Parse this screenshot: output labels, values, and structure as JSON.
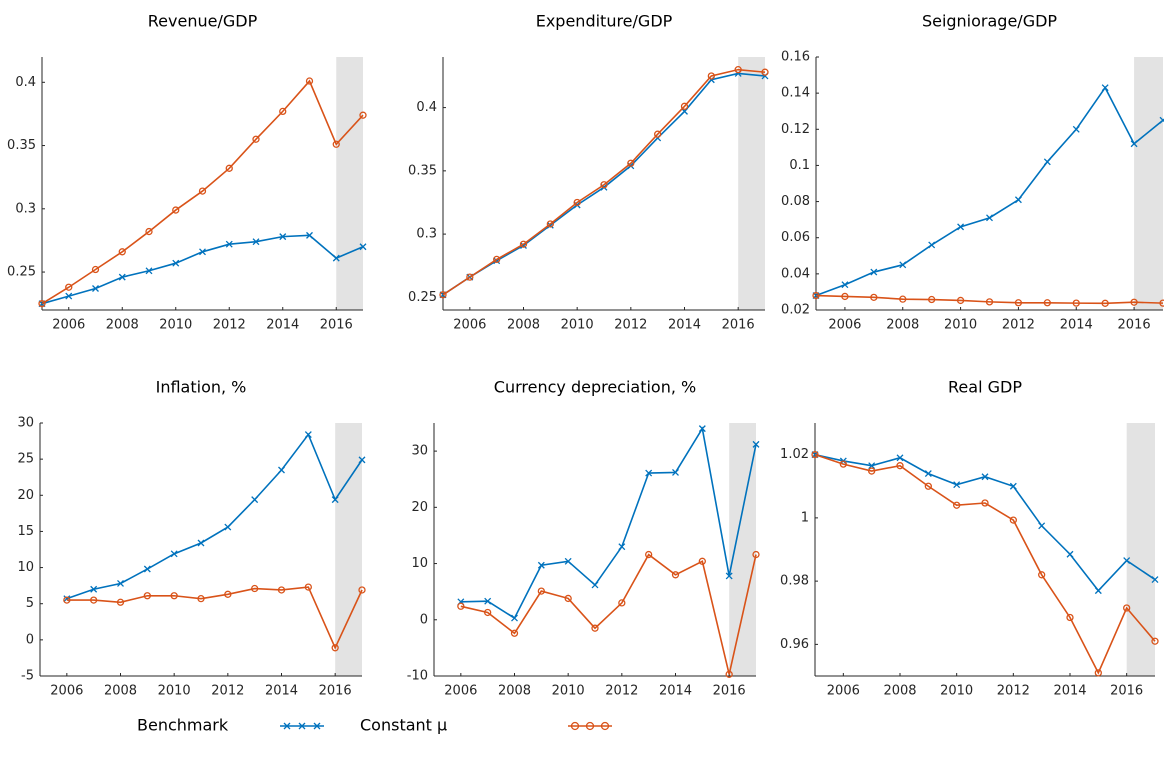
{
  "chart_data": [
    {
      "type": "line",
      "title": "Revenue/GDP",
      "x": [
        2005,
        2006,
        2007,
        2008,
        2009,
        2010,
        2011,
        2012,
        2013,
        2014,
        2015,
        2016,
        2017
      ],
      "xlim": [
        2005,
        2017
      ],
      "xticks": [
        2006,
        2008,
        2010,
        2012,
        2014,
        2016
      ],
      "ylim": [
        0.22,
        0.42
      ],
      "yticks": [
        0.25,
        0.3,
        0.35,
        0.4
      ],
      "shade_from": 2016,
      "series": [
        {
          "name": "Benchmark",
          "color": "#0072bd",
          "marker": "x",
          "values": [
            0.225,
            0.231,
            0.237,
            0.246,
            0.251,
            0.257,
            0.266,
            0.272,
            0.274,
            0.278,
            0.279,
            0.261,
            0.27
          ]
        },
        {
          "name": "Constant μ",
          "color": "#d95319",
          "marker": "o",
          "values": [
            0.225,
            0.238,
            0.252,
            0.266,
            0.282,
            0.299,
            0.314,
            0.332,
            0.355,
            0.377,
            0.401,
            0.351,
            0.374
          ]
        }
      ]
    },
    {
      "type": "line",
      "title": "Expenditure/GDP",
      "x": [
        2005,
        2006,
        2007,
        2008,
        2009,
        2010,
        2011,
        2012,
        2013,
        2014,
        2015,
        2016,
        2017
      ],
      "xlim": [
        2005,
        2017
      ],
      "xticks": [
        2006,
        2008,
        2010,
        2012,
        2014,
        2016
      ],
      "ylim": [
        0.24,
        0.44
      ],
      "yticks": [
        0.25,
        0.3,
        0.35,
        0.4
      ],
      "shade_from": 2016,
      "series": [
        {
          "color": "#0072bd",
          "marker": "x",
          "values": [
            0.252,
            0.266,
            0.279,
            0.291,
            0.307,
            0.323,
            0.337,
            0.354,
            0.376,
            0.397,
            0.422,
            0.427,
            0.425
          ]
        },
        {
          "color": "#d95319",
          "marker": "o",
          "values": [
            0.252,
            0.266,
            0.28,
            0.292,
            0.308,
            0.325,
            0.339,
            0.356,
            0.379,
            0.401,
            0.425,
            0.43,
            0.428
          ]
        }
      ]
    },
    {
      "type": "line",
      "title": "Seigniorage/GDP",
      "x": [
        2005,
        2006,
        2007,
        2008,
        2009,
        2010,
        2011,
        2012,
        2013,
        2014,
        2015,
        2016,
        2017
      ],
      "xlim": [
        2005,
        2017
      ],
      "xticks": [
        2006,
        2008,
        2010,
        2012,
        2014,
        2016
      ],
      "ylim": [
        0.02,
        0.16
      ],
      "yticks": [
        0.02,
        0.04,
        0.06,
        0.08,
        0.1,
        0.12,
        0.14,
        0.16
      ],
      "shade_from": 2016,
      "series": [
        {
          "color": "#0072bd",
          "marker": "x",
          "values": [
            0.028,
            0.034,
            0.041,
            0.045,
            0.056,
            0.066,
            0.071,
            0.081,
            0.102,
            0.12,
            0.143,
            0.112,
            0.125
          ]
        },
        {
          "color": "#d95319",
          "marker": "o",
          "values": [
            0.028,
            0.0275,
            0.027,
            0.026,
            0.0258,
            0.0253,
            0.0245,
            0.024,
            0.024,
            0.0238,
            0.0237,
            0.0243,
            0.0238
          ]
        }
      ]
    },
    {
      "type": "line",
      "title": "Inflation, %",
      "x": [
        2006,
        2007,
        2008,
        2009,
        2010,
        2011,
        2012,
        2013,
        2014,
        2015,
        2016,
        2017
      ],
      "xlim": [
        2005,
        2017
      ],
      "xticks": [
        2006,
        2008,
        2010,
        2012,
        2014,
        2016
      ],
      "ylim": [
        -5,
        30
      ],
      "yticks": [
        -5,
        0,
        5,
        10,
        15,
        20,
        25,
        30
      ],
      "shade_from": 2016,
      "series": [
        {
          "color": "#0072bd",
          "marker": "x",
          "values": [
            5.7,
            7.0,
            7.8,
            9.8,
            11.9,
            13.4,
            15.6,
            19.4,
            23.5,
            28.4,
            19.4,
            24.9
          ]
        },
        {
          "color": "#d95319",
          "marker": "o",
          "values": [
            5.5,
            5.5,
            5.2,
            6.1,
            6.1,
            5.7,
            6.3,
            7.1,
            6.9,
            7.3,
            -1.1,
            6.9
          ]
        }
      ]
    },
    {
      "type": "line",
      "title": "Currency depreciation, %",
      "x": [
        2006,
        2007,
        2008,
        2009,
        2010,
        2011,
        2012,
        2013,
        2014,
        2015,
        2016,
        2017
      ],
      "xlim": [
        2005,
        2017
      ],
      "xticks": [
        2006,
        2008,
        2010,
        2012,
        2014,
        2016
      ],
      "ylim": [
        -10,
        35
      ],
      "yticks": [
        -10,
        0,
        10,
        20,
        30
      ],
      "shade_from": 2016,
      "series": [
        {
          "color": "#0072bd",
          "marker": "x",
          "values": [
            3.2,
            3.3,
            0.3,
            9.7,
            10.4,
            6.2,
            13,
            26.1,
            26.2,
            34,
            7.8,
            31.2
          ]
        },
        {
          "color": "#d95319",
          "marker": "o",
          "values": [
            2.4,
            1.3,
            -2.4,
            5.1,
            3.8,
            -1.5,
            3,
            11.6,
            8,
            10.4,
            -9.7,
            11.6
          ]
        }
      ]
    },
    {
      "type": "line",
      "title": "Real GDP",
      "x": [
        2005,
        2006,
        2007,
        2008,
        2009,
        2010,
        2011,
        2012,
        2013,
        2014,
        2015,
        2016,
        2017
      ],
      "xlim": [
        2005,
        2017
      ],
      "xticks": [
        2006,
        2008,
        2010,
        2012,
        2014,
        2016
      ],
      "ylim": [
        0.95,
        1.03
      ],
      "yticks": [
        0.96,
        0.98,
        1,
        1.02
      ],
      "shade_from": 2016,
      "series": [
        {
          "color": "#0072bd",
          "marker": "x",
          "values": [
            1.02,
            1.018,
            1.0165,
            1.019,
            1.014,
            1.0105,
            1.013,
            1.01,
            0.9975,
            0.9885,
            0.977,
            0.9865,
            0.9805
          ]
        },
        {
          "color": "#d95319",
          "marker": "o",
          "values": [
            1.02,
            1.017,
            1.0148,
            1.0165,
            1.01,
            1.004,
            1.0047,
            0.9993,
            0.982,
            0.9685,
            0.951,
            0.9715,
            0.961
          ]
        }
      ]
    }
  ]
}
